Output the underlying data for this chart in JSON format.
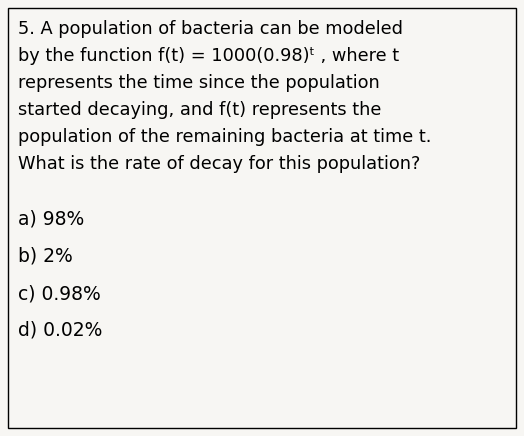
{
  "background_color": "#f7f6f3",
  "border_color": "#000000",
  "text_color": "#000000",
  "line1": "5. A population of bacteria can be modeled",
  "line2": "by the function f(t) = 1000(0.98)ᵗ , where t",
  "line3": "represents the time since the population",
  "line4": "started decaying, and f(t) represents the",
  "line5": "population of the remaining bacteria at time t.",
  "line6": "What is the rate of decay for this population?",
  "choice_a": "a) 98%",
  "choice_b": "b) 2%",
  "choice_c": "c) 0.98%",
  "choice_d": "d) 0.02%",
  "font_size": 12.8,
  "choice_font_size": 13.5,
  "fig_width": 5.24,
  "fig_height": 4.36,
  "dpi": 100
}
